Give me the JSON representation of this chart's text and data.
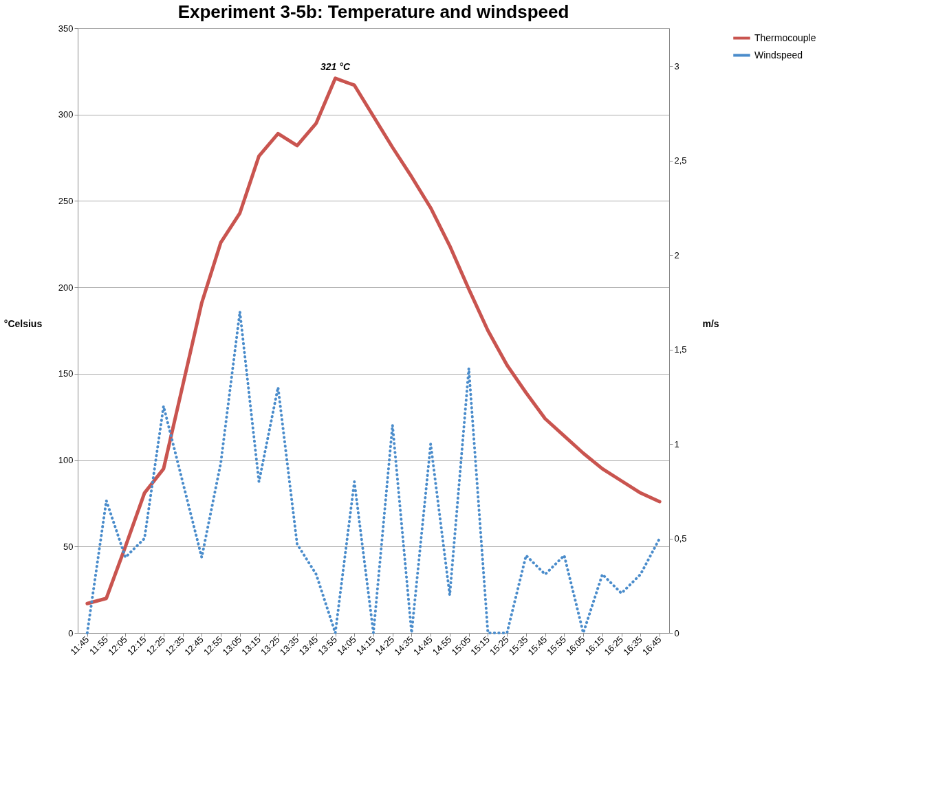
{
  "chart_data": {
    "type": "line",
    "title": "Experiment 3-5b: Temperature and windspeed",
    "ylabel": "°Celsius",
    "y2label": "m/s",
    "x": [
      11.75,
      11.9167,
      12.0833,
      12.25,
      12.4167,
      12.5833,
      12.75,
      12.9167,
      13.0833,
      13.25,
      13.4167,
      13.5833,
      13.75,
      13.9167,
      14.0833,
      14.25,
      14.4167,
      14.5833,
      14.75,
      14.9167,
      15.0833,
      15.25,
      15.4167,
      15.5833,
      15.75,
      15.9167,
      16.0833,
      16.25,
      16.4167,
      16.5833,
      16.75
    ],
    "series": [
      {
        "name": "Thermocouple",
        "color": "#c9544f",
        "line_style": "solid",
        "values": [
          17,
          20,
          50,
          81,
          95,
          143,
          191,
          226,
          243,
          276,
          289,
          282,
          295,
          321,
          317,
          299,
          281,
          264,
          246,
          224,
          199,
          175,
          155,
          139,
          124,
          114,
          104,
          95,
          88,
          81,
          76
        ]
      },
      {
        "name": "Windspeed",
        "color": "#4a8ccb",
        "line_style": "dotted",
        "axis": "y2",
        "values": [
          0,
          0.7,
          0.4,
          0.5,
          1.2,
          0.8,
          0.4,
          0.9,
          1.7,
          0.8,
          1.3,
          0.47,
          0.31,
          0,
          0.8,
          0,
          1.1,
          0,
          1.0,
          0.2,
          1.4,
          0,
          0,
          0.41,
          0.31,
          0.41,
          0,
          0.31,
          0.21,
          0.31,
          0.5
        ]
      }
    ],
    "xlim": [
      11.6667,
      16.8333
    ],
    "xticks": [
      {
        "value": 11.75,
        "label": "11:45"
      },
      {
        "value": 11.9167,
        "label": "11:55"
      },
      {
        "value": 12.0833,
        "label": "12:05"
      },
      {
        "value": 12.25,
        "label": "12:15"
      },
      {
        "value": 12.4167,
        "label": "12:25"
      },
      {
        "value": 12.5833,
        "label": "12:35"
      },
      {
        "value": 12.75,
        "label": "12:45"
      },
      {
        "value": 12.9167,
        "label": "12:55"
      },
      {
        "value": 13.0833,
        "label": "13:05"
      },
      {
        "value": 13.25,
        "label": "13:15"
      },
      {
        "value": 13.4167,
        "label": "13:25"
      },
      {
        "value": 13.5833,
        "label": "13:35"
      },
      {
        "value": 13.75,
        "label": "13:45"
      },
      {
        "value": 13.9167,
        "label": "13:55"
      },
      {
        "value": 14.0833,
        "label": "14:05"
      },
      {
        "value": 14.25,
        "label": "14:15"
      },
      {
        "value": 14.4167,
        "label": "14:25"
      },
      {
        "value": 14.5833,
        "label": "14:35"
      },
      {
        "value": 14.75,
        "label": "14:45"
      },
      {
        "value": 14.9167,
        "label": "14:55"
      },
      {
        "value": 15.0833,
        "label": "15:05"
      },
      {
        "value": 15.25,
        "label": "15:15"
      },
      {
        "value": 15.4167,
        "label": "15:25"
      },
      {
        "value": 15.5833,
        "label": "15:35"
      },
      {
        "value": 15.75,
        "label": "15:45"
      },
      {
        "value": 15.9167,
        "label": "15:55"
      },
      {
        "value": 16.0833,
        "label": "16:05"
      },
      {
        "value": 16.25,
        "label": "16:15"
      },
      {
        "value": 16.4167,
        "label": "16:25"
      },
      {
        "value": 16.5833,
        "label": "16:35"
      },
      {
        "value": 16.75,
        "label": "16:45"
      }
    ],
    "ylim": [
      0,
      350
    ],
    "yticks": [
      0,
      50,
      100,
      150,
      200,
      250,
      300,
      350
    ],
    "y2lim": [
      0,
      3.2
    ],
    "y2ticks": [
      0,
      {
        "value": 0.5,
        "label": "0,5"
      },
      1,
      {
        "value": 1.5,
        "label": "1,5"
      },
      2,
      {
        "value": 2.5,
        "label": "2,5"
      },
      3
    ],
    "annotations": [
      {
        "text": "321 °C",
        "x": 13.9167,
        "y": 321
      }
    ],
    "grid": "y",
    "legend": "right",
    "marker": "none"
  }
}
